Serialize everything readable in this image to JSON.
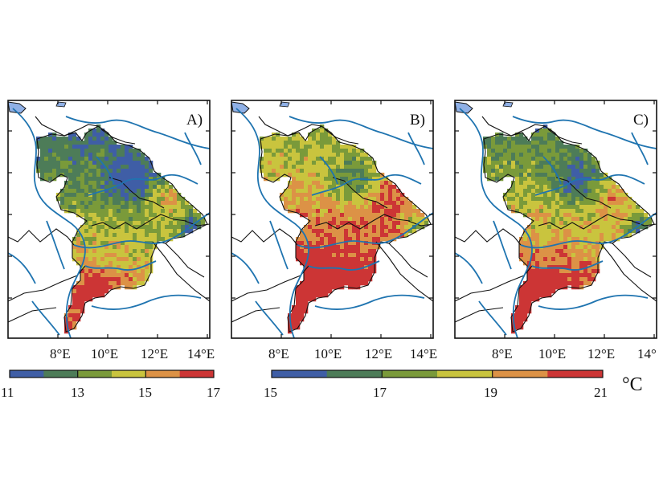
{
  "panels": [
    {
      "id": "A",
      "label": "A)",
      "lon_ticks": [
        "8°E",
        "10°E",
        "12°E",
        "14°E"
      ]
    },
    {
      "id": "B",
      "label": "B)",
      "lon_ticks": [
        "8°E",
        "10°E",
        "12°E",
        "14°E"
      ]
    },
    {
      "id": "C",
      "label": "C)",
      "lon_ticks": [
        "8°E",
        "10°E",
        "12°E",
        "14°"
      ]
    }
  ],
  "colorbars": [
    {
      "ticks": [
        "11",
        "13",
        "15",
        "17"
      ],
      "min": 11,
      "max": 17
    },
    {
      "ticks": [
        "15",
        "17",
        "19",
        "21"
      ],
      "min": 15,
      "max": 21
    }
  ],
  "unit": "°C",
  "colors": {
    "palette": [
      "#3f5ea6",
      "#4d7c58",
      "#7a9a3a",
      "#c9c43e",
      "#dc9246",
      "#cc3535"
    ],
    "river": "#1f74b0",
    "border": "#111111",
    "lake": "#8fb0e6"
  },
  "panel_tone_bias": [
    0,
    2,
    0.8
  ]
}
